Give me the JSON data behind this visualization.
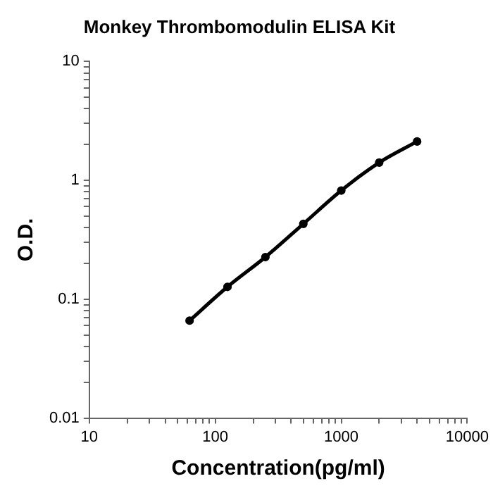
{
  "chart_data": {
    "type": "line",
    "title": "Monkey Thrombomodulin ELISA Kit",
    "xlabel": "Concentration(pg/ml)",
    "ylabel": "O.D.",
    "x": [
      62.5,
      125,
      250,
      500,
      1000,
      2000,
      4000
    ],
    "series": [
      {
        "color": "#000000",
        "values": [
          0.066,
          0.127,
          0.226,
          0.43,
          0.82,
          1.41,
          2.12
        ]
      }
    ],
    "log": "xy",
    "xlim": [
      10,
      10000
    ],
    "ylim": [
      0.01,
      10
    ],
    "xticks": [
      10,
      {
        "value": 20,
        "label": null
      },
      {
        "value": 30,
        "label": null
      },
      {
        "value": 40,
        "label": null
      },
      {
        "value": 50,
        "label": null
      },
      {
        "value": 60,
        "label": null
      },
      {
        "value": 70,
        "label": null
      },
      {
        "value": 80,
        "label": null
      },
      {
        "value": 90,
        "label": null
      },
      100,
      {
        "value": 200,
        "label": null
      },
      {
        "value": 300,
        "label": null
      },
      {
        "value": 400,
        "label": null
      },
      {
        "value": 500,
        "label": null
      },
      {
        "value": 600,
        "label": null
      },
      {
        "value": 700,
        "label": null
      },
      {
        "value": 800,
        "label": null
      },
      {
        "value": 900,
        "label": null
      },
      1000,
      {
        "value": 2000,
        "label": null
      },
      {
        "value": 3000,
        "label": null
      },
      {
        "value": 4000,
        "label": null
      },
      {
        "value": 5000,
        "label": null
      },
      {
        "value": 6000,
        "label": null
      },
      {
        "value": 7000,
        "label": null
      },
      {
        "value": 8000,
        "label": null
      },
      {
        "value": 9000,
        "label": null
      },
      10000
    ],
    "yticks": [
      0.01,
      {
        "value": 0.02,
        "label": null
      },
      {
        "value": 0.03,
        "label": null
      },
      {
        "value": 0.04,
        "label": null
      },
      {
        "value": 0.05,
        "label": null
      },
      {
        "value": 0.06,
        "label": null
      },
      {
        "value": 0.07,
        "label": null
      },
      {
        "value": 0.08,
        "label": null
      },
      {
        "value": 0.09,
        "label": null
      },
      0.1,
      {
        "value": 0.2,
        "label": null
      },
      {
        "value": 0.3,
        "label": null
      },
      {
        "value": 0.4,
        "label": null
      },
      {
        "value": 0.5,
        "label": null
      },
      {
        "value": 0.6,
        "label": null
      },
      {
        "value": 0.7,
        "label": null
      },
      {
        "value": 0.8,
        "label": null
      },
      {
        "value": 0.9,
        "label": null
      },
      1,
      {
        "value": 2,
        "label": null
      },
      {
        "value": 3,
        "label": null
      },
      {
        "value": 4,
        "label": null
      },
      {
        "value": 5,
        "label": null
      },
      {
        "value": 6,
        "label": null
      },
      {
        "value": 7,
        "label": null
      },
      {
        "value": 8,
        "label": null
      },
      {
        "value": 9,
        "label": null
      },
      10
    ],
    "grid": false,
    "legend": false,
    "marker": "circle",
    "line_style": "solid"
  }
}
